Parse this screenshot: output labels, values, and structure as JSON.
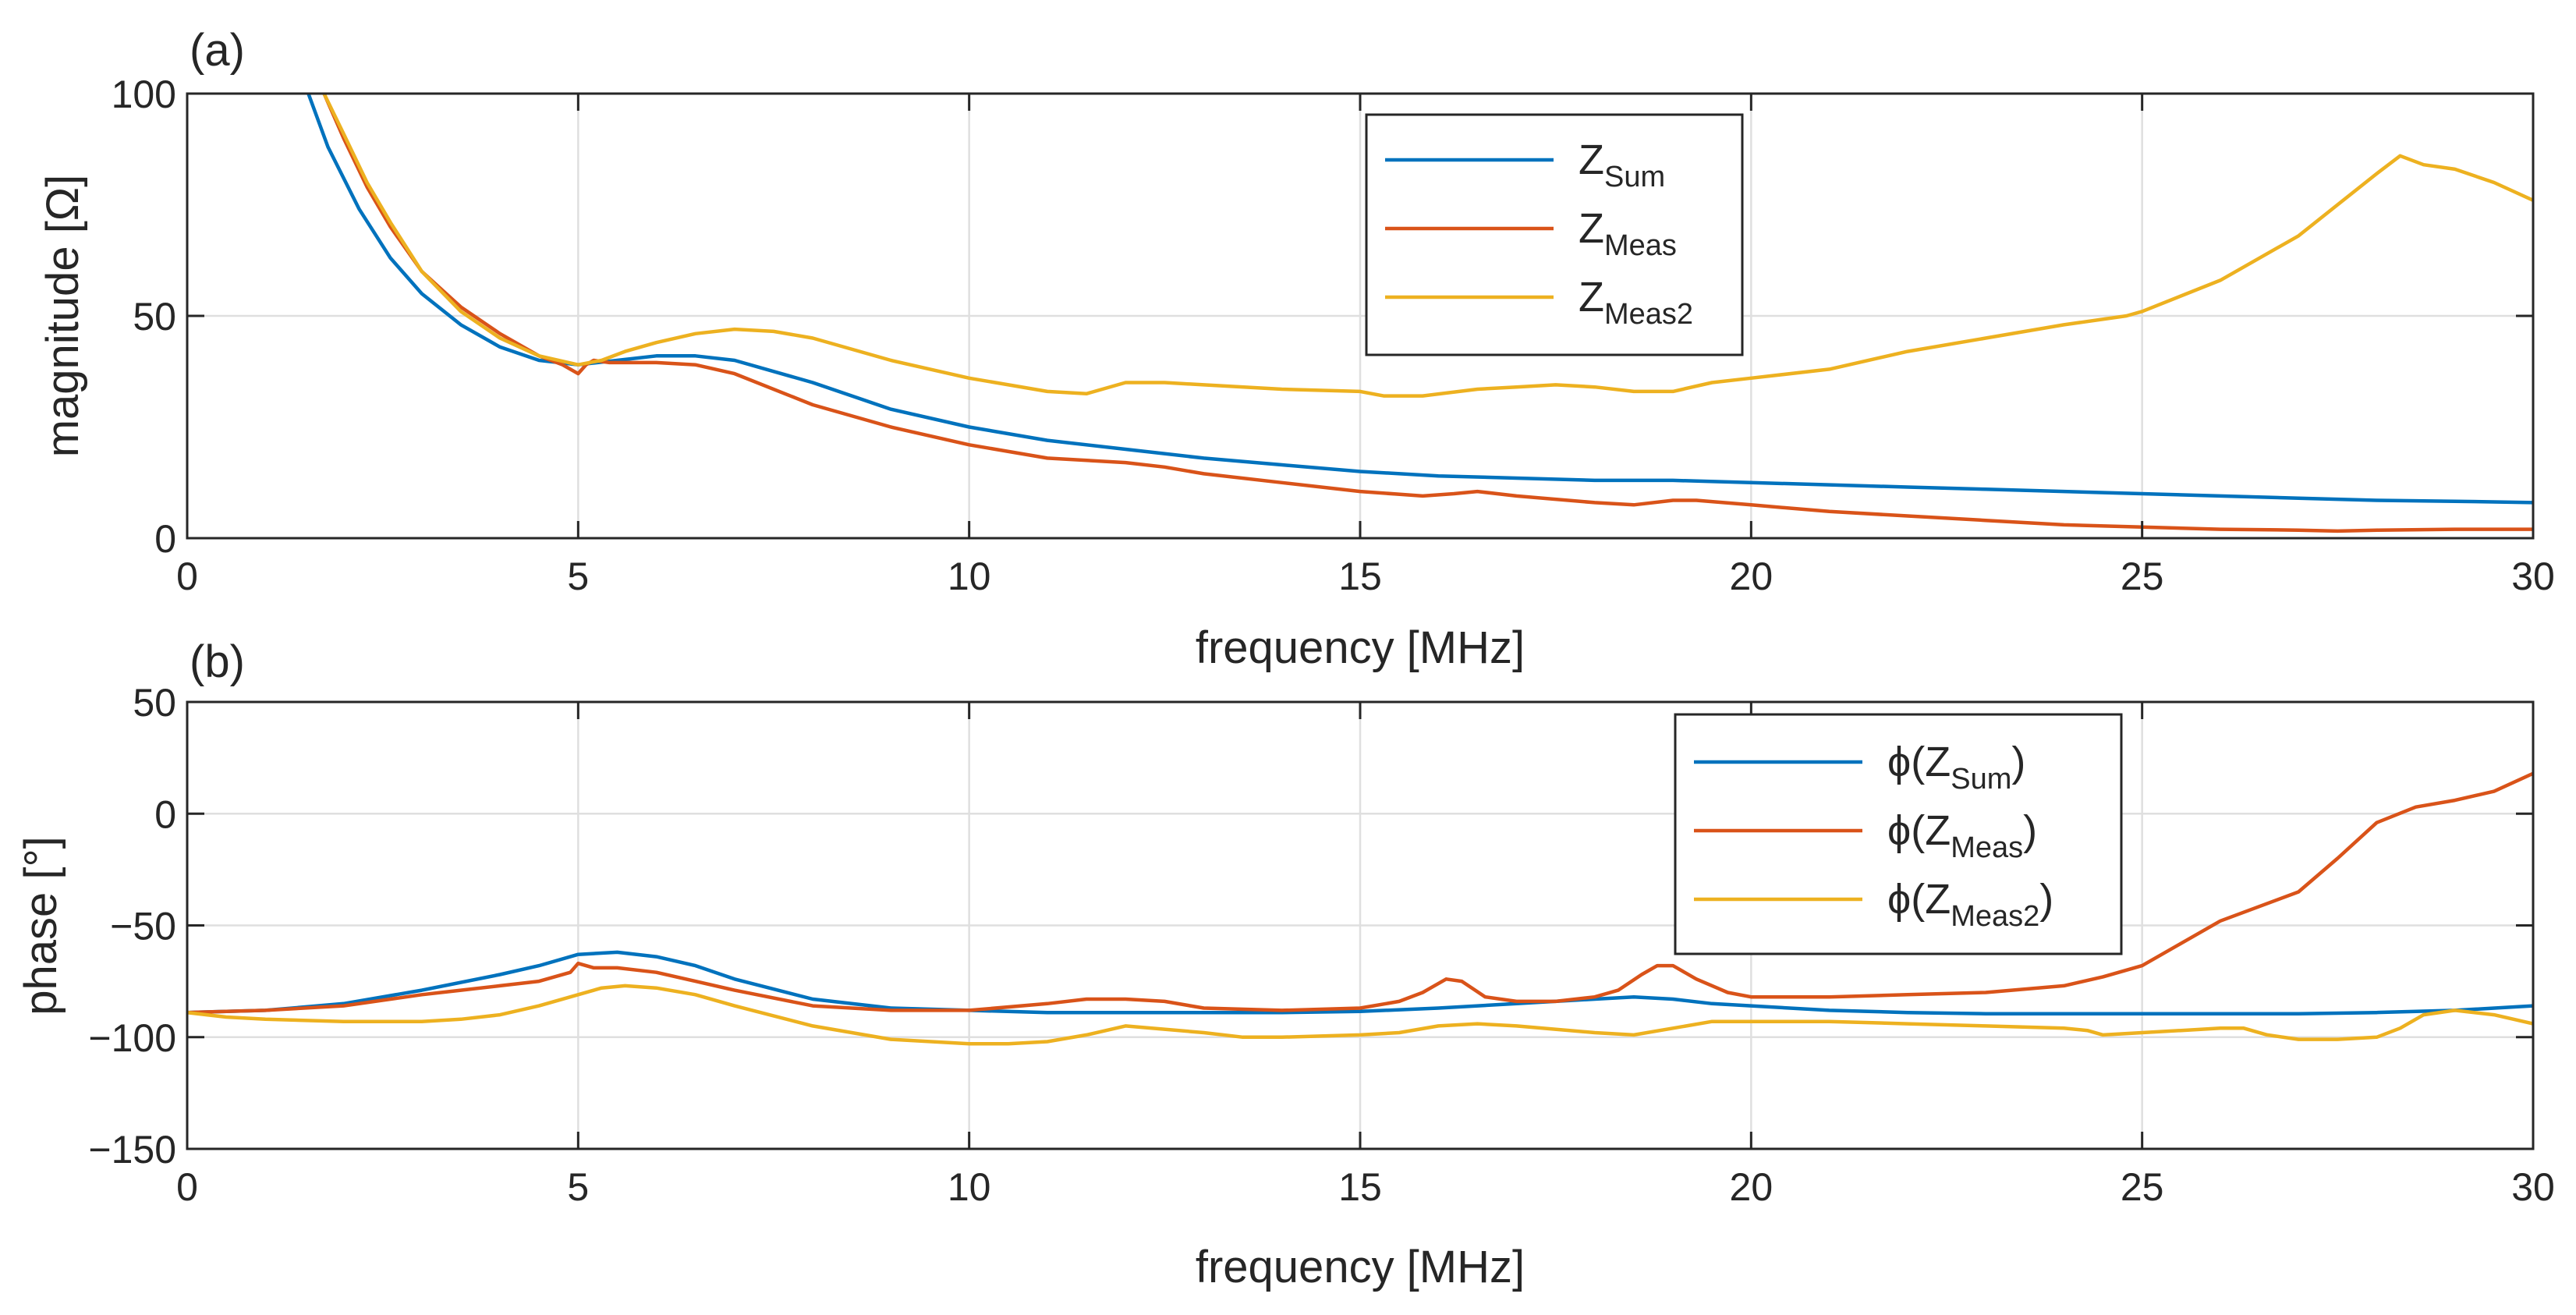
{
  "chart_data": [
    {
      "type": "line",
      "panel_label": "(a)",
      "title": "",
      "xlabel": "frequency [MHz]",
      "ylabel": "magnitude [Ω]",
      "xlim": [
        0,
        30
      ],
      "ylim": [
        0,
        100
      ],
      "xticks": [
        0,
        5,
        10,
        15,
        20,
        25,
        30
      ],
      "yticks": [
        0,
        50,
        100
      ],
      "grid": true,
      "legend_position": "top-center",
      "series": [
        {
          "name": "Z_Sum",
          "legend_main": "Z",
          "legend_sub": "Sum",
          "color": "#0072BD",
          "x": [
            1.55,
            1.8,
            2.2,
            2.6,
            3.0,
            3.5,
            4.0,
            4.5,
            5.0,
            5.5,
            6.0,
            6.5,
            7.0,
            8.0,
            9.0,
            10.0,
            11.0,
            12.0,
            13.0,
            14.0,
            15.0,
            16.0,
            17.0,
            18.0,
            19.0,
            20.0,
            21.0,
            22.0,
            23.0,
            24.0,
            25.0,
            26.0,
            27.0,
            28.0,
            29.0,
            30.0
          ],
          "y": [
            100,
            88,
            74,
            63,
            55,
            48,
            43,
            40,
            39,
            40,
            41,
            41,
            40,
            35,
            29,
            25,
            22,
            20,
            18,
            16.5,
            15,
            14,
            13.5,
            13,
            13,
            12.5,
            12,
            11.5,
            11,
            10.5,
            10,
            9.5,
            9,
            8.5,
            8.3,
            8
          ]
        },
        {
          "name": "Z_Meas",
          "legend_main": "Z",
          "legend_sub": "Meas",
          "color": "#D95319",
          "x": [
            1.75,
            2.0,
            2.3,
            2.6,
            3.0,
            3.5,
            4.0,
            4.5,
            4.8,
            5.0,
            5.1,
            5.2,
            5.4,
            5.7,
            6.0,
            6.5,
            7.0,
            8.0,
            9.0,
            10.0,
            11.0,
            12.0,
            12.5,
            13.0,
            14.0,
            15.0,
            15.8,
            16.2,
            16.5,
            17.0,
            18.0,
            18.5,
            19.0,
            19.3,
            20.0,
            21.0,
            22.0,
            23.0,
            24.0,
            25.0,
            26.0,
            27.0,
            27.5,
            28.0,
            29.0,
            30.0
          ],
          "y": [
            100,
            90,
            79,
            70,
            60,
            52,
            46,
            41,
            39,
            37,
            39,
            40,
            39.5,
            39.5,
            39.5,
            39,
            37,
            30,
            25,
            21,
            18,
            17,
            16,
            14.5,
            12.5,
            10.5,
            9.5,
            10,
            10.5,
            9.5,
            8,
            7.5,
            8.5,
            8.5,
            7.5,
            6,
            5,
            4,
            3,
            2.5,
            2,
            1.8,
            1.6,
            1.8,
            2,
            2
          ]
        },
        {
          "name": "Z_Meas2",
          "legend_main": "Z",
          "legend_sub": "Meas2",
          "color": "#EDB120",
          "x": [
            1.75,
            2.0,
            2.3,
            2.6,
            3.0,
            3.5,
            4.0,
            4.5,
            5.0,
            5.3,
            5.6,
            6.0,
            6.5,
            7.0,
            7.5,
            8.0,
            9.0,
            10.0,
            11.0,
            11.5,
            12.0,
            12.5,
            13.0,
            14.0,
            15.0,
            15.3,
            15.8,
            16.5,
            17.0,
            17.5,
            18.0,
            18.5,
            19.0,
            19.5,
            20.0,
            21.0,
            22.0,
            23.0,
            24.0,
            24.8,
            25.0,
            26.0,
            27.0,
            27.5,
            28.0,
            28.3,
            28.6,
            29.0,
            29.5,
            30.0
          ],
          "y": [
            100,
            91,
            80,
            71,
            60,
            51,
            45,
            41,
            39,
            40,
            42,
            44,
            46,
            47,
            46.5,
            45,
            40,
            36,
            33,
            32.5,
            35,
            35,
            34.5,
            33.5,
            33,
            32,
            32,
            33.5,
            34,
            34.5,
            34,
            33,
            33,
            35,
            36,
            38,
            42,
            45,
            48,
            50,
            51,
            58,
            68,
            75,
            82,
            86,
            84,
            83,
            80,
            76
          ]
        }
      ]
    },
    {
      "type": "line",
      "panel_label": "(b)",
      "title": "",
      "xlabel": "frequency [MHz]",
      "ylabel": "phase [°]",
      "xlim": [
        0,
        30
      ],
      "ylim": [
        -150,
        50
      ],
      "xticks": [
        0,
        5,
        10,
        15,
        20,
        25,
        30
      ],
      "yticks": [
        -150,
        -100,
        -50,
        0,
        50
      ],
      "grid": true,
      "legend_position": "top-right",
      "series": [
        {
          "name": "φ(Z_Sum)",
          "legend_main": "ϕ(Z",
          "legend_sub": "Sum",
          "legend_end": ")",
          "color": "#0072BD",
          "x": [
            0,
            1,
            2,
            3,
            4,
            4.5,
            5.0,
            5.5,
            6.0,
            6.5,
            7.0,
            8.0,
            9.0,
            10.0,
            11.0,
            12.0,
            13.0,
            14.0,
            15.0,
            16.0,
            17.0,
            18.0,
            18.5,
            19.0,
            19.5,
            20.0,
            21.0,
            22.0,
            23.0,
            24.0,
            25.0,
            26.0,
            27.0,
            28.0,
            29.0,
            30.0
          ],
          "y": [
            -89,
            -88,
            -85,
            -79,
            -72,
            -68,
            -63,
            -62,
            -64,
            -68,
            -74,
            -83,
            -87,
            -88,
            -89,
            -89,
            -89,
            -89,
            -88.5,
            -87,
            -85,
            -83,
            -82,
            -83,
            -85,
            -86,
            -88,
            -89,
            -89.5,
            -89.5,
            -89.5,
            -89.5,
            -89.5,
            -89,
            -88,
            -86
          ]
        },
        {
          "name": "φ(Z_Meas)",
          "legend_main": "ϕ(Z",
          "legend_sub": "Meas",
          "legend_end": ")",
          "color": "#D95319",
          "x": [
            0,
            1,
            2,
            3,
            3.5,
            4,
            4.5,
            4.9,
            5.0,
            5.1,
            5.2,
            5.5,
            6.0,
            6.5,
            7.0,
            8.0,
            9.0,
            10.0,
            11.0,
            11.5,
            12.0,
            12.5,
            13.0,
            14.0,
            15.0,
            15.5,
            15.8,
            16.1,
            16.3,
            16.6,
            17.0,
            17.5,
            18.0,
            18.3,
            18.6,
            18.8,
            19.0,
            19.3,
            19.7,
            20.0,
            21.0,
            22.0,
            23.0,
            24.0,
            24.5,
            25.0,
            25.5,
            26.0,
            27.0,
            27.5,
            28.0,
            28.5,
            29.0,
            29.5,
            30.0
          ],
          "y": [
            -89,
            -88,
            -86,
            -81,
            -79,
            -77,
            -75,
            -71,
            -67,
            -68,
            -69,
            -69,
            -71,
            -75,
            -79,
            -86,
            -88,
            -88,
            -85,
            -83,
            -83,
            -84,
            -87,
            -88,
            -87,
            -84,
            -80,
            -74,
            -75,
            -82,
            -84,
            -84,
            -82,
            -79,
            -72,
            -68,
            -68,
            -74,
            -80,
            -82,
            -82,
            -81,
            -80,
            -77,
            -73,
            -68,
            -58,
            -48,
            -35,
            -20,
            -4,
            3,
            6,
            10,
            18
          ]
        },
        {
          "name": "φ(Z_Meas2)",
          "legend_main": "ϕ(Z",
          "legend_sub": "Meas2",
          "legend_end": ")",
          "color": "#EDB120",
          "x": [
            0,
            0.5,
            1,
            2,
            3,
            3.5,
            4.0,
            4.5,
            5.0,
            5.3,
            5.6,
            6.0,
            6.5,
            7.0,
            8.0,
            9.0,
            10.0,
            10.5,
            11.0,
            11.5,
            12.0,
            13.0,
            13.5,
            14.0,
            15.0,
            15.5,
            16.0,
            16.5,
            17.0,
            18.0,
            18.5,
            19.0,
            19.5,
            20.0,
            21.0,
            22.0,
            23.0,
            24.0,
            24.3,
            24.5,
            25.0,
            25.5,
            26.0,
            26.3,
            26.6,
            27.0,
            27.5,
            28.0,
            28.3,
            28.6,
            29.0,
            29.5,
            30.0
          ],
          "y": [
            -89,
            -91,
            -92,
            -93,
            -93,
            -92,
            -90,
            -86,
            -81,
            -78,
            -77,
            -78,
            -81,
            -86,
            -95,
            -101,
            -103,
            -103,
            -102,
            -99,
            -95,
            -98,
            -100,
            -100,
            -99,
            -98,
            -95,
            -94,
            -95,
            -98,
            -99,
            -96,
            -93,
            -93,
            -93,
            -94,
            -95,
            -96,
            -97,
            -99,
            -98,
            -97,
            -96,
            -96,
            -99,
            -101,
            -101,
            -100,
            -96,
            -90,
            -88,
            -90,
            -94
          ]
        }
      ]
    }
  ]
}
